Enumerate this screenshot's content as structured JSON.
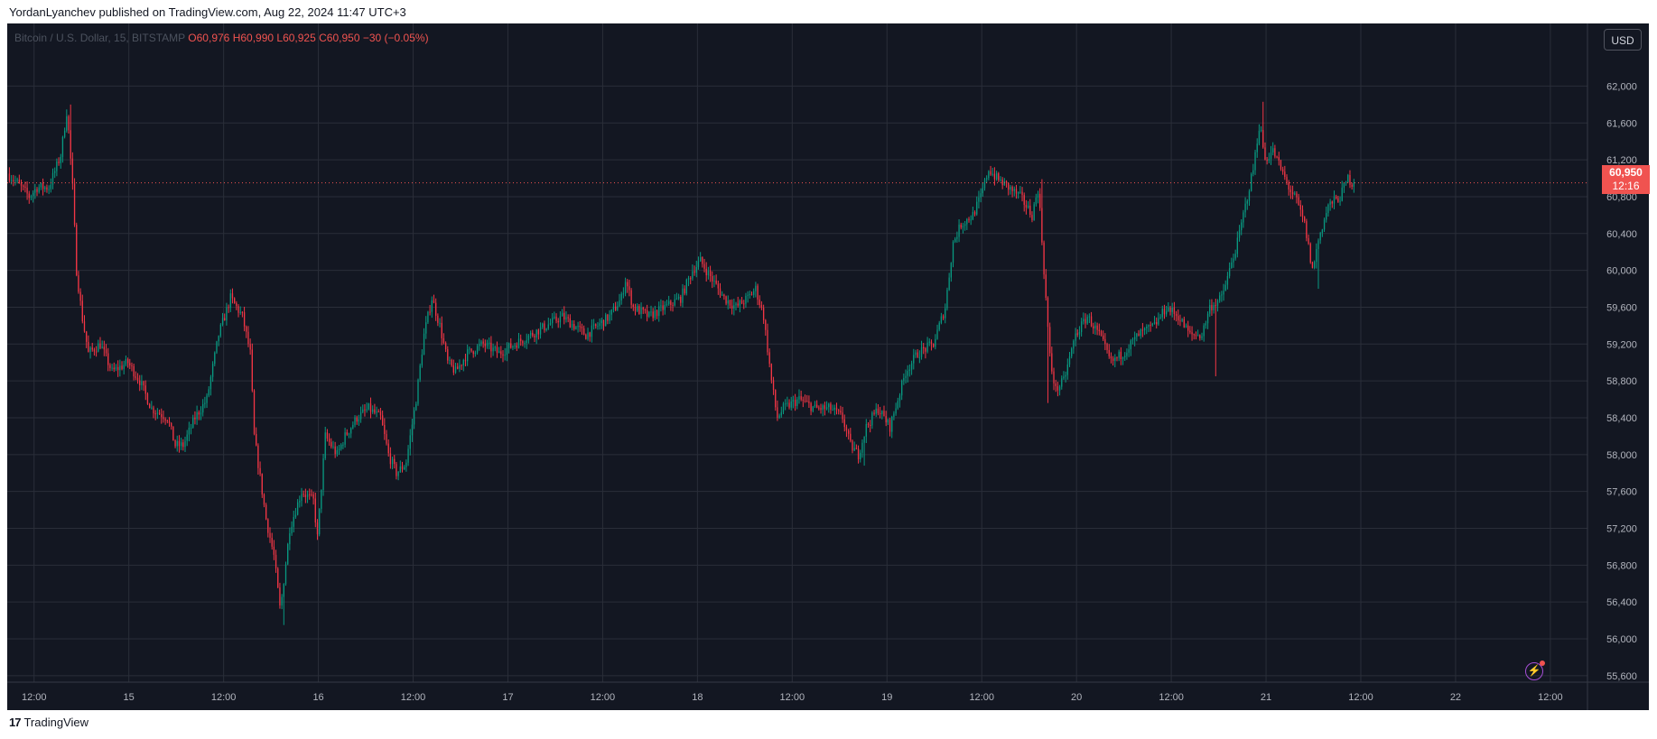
{
  "header": {
    "text": "YordanLyanchev published on TradingView.com, Aug 22, 2024 11:47 UTC+3"
  },
  "currency_button": "USD",
  "legend": {
    "symbol": "Bitcoin / U.S. Dollar, 15, BITSTAMP",
    "open": "O60,976",
    "high": "H60,990",
    "low": "L60,925",
    "close": "C60,950",
    "change": "−30 (−0.05%)"
  },
  "price_badge": {
    "price": "60,950",
    "countdown": "12:16"
  },
  "footer": {
    "logo_mark": "17",
    "brand": "TradingView"
  },
  "colors": {
    "background": "#131722",
    "grid": "#2a2e39",
    "up": "#089981",
    "down": "#f23645",
    "text": "#b2b5be",
    "badge": "#f05350"
  },
  "chart_data": {
    "type": "candlestick",
    "title": "Bitcoin / U.S. Dollar, 15, BITSTAMP",
    "y_ticks": [
      55600,
      56000,
      56400,
      56800,
      57200,
      57600,
      58000,
      58400,
      58800,
      59200,
      59600,
      60000,
      60400,
      60800,
      61200,
      61600,
      62000
    ],
    "y_tick_labels": [
      "55,600",
      "56,000",
      "56,400",
      "56,800",
      "57,200",
      "57,600",
      "58,000",
      "58,400",
      "58,800",
      "59,200",
      "59,600",
      "60,000",
      "60,400",
      "60,800",
      "61,200",
      "61,600",
      "62,000"
    ],
    "ylim": [
      55530,
      62680
    ],
    "x_ticks": [
      "12:00",
      "15",
      "12:00",
      "16",
      "12:00",
      "17",
      "12:00",
      "18",
      "12:00",
      "19",
      "12:00",
      "20",
      "12:00",
      "21",
      "12:00",
      "22",
      "12:00"
    ],
    "x_tick_hours": [
      12,
      24,
      36,
      48,
      60,
      72,
      84,
      96,
      108,
      120,
      132,
      144,
      156,
      168,
      180,
      192,
      204
    ],
    "x_range_hours": [
      8.6,
      208.7
    ],
    "bars_per_hour": 4,
    "start_hour": 8.75,
    "last_price": 60950,
    "grid": true,
    "price_path": [
      [
        8.75,
        61050
      ],
      [
        10,
        60950
      ],
      [
        11.5,
        60800
      ],
      [
        12.5,
        60900
      ],
      [
        14,
        60900
      ],
      [
        15.5,
        61250
      ],
      [
        16.3,
        61750
      ],
      [
        17,
        60900
      ],
      [
        17.5,
        60000
      ],
      [
        18.2,
        59500
      ],
      [
        19,
        59100
      ],
      [
        20.5,
        59200
      ],
      [
        22,
        58900
      ],
      [
        24,
        59000
      ],
      [
        25.5,
        58800
      ],
      [
        27,
        58500
      ],
      [
        29,
        58400
      ],
      [
        30,
        58100
      ],
      [
        31,
        58100
      ],
      [
        32.5,
        58400
      ],
      [
        34,
        58600
      ],
      [
        35.5,
        59300
      ],
      [
        37,
        59700
      ],
      [
        38.5,
        59500
      ],
      [
        39.5,
        59100
      ],
      [
        40,
        58200
      ],
      [
        41.5,
        57300
      ],
      [
        42.5,
        56900
      ],
      [
        43.3,
        56300
      ],
      [
        44.5,
        57200
      ],
      [
        46,
        57600
      ],
      [
        47.5,
        57500
      ],
      [
        48,
        57100
      ],
      [
        49,
        58200
      ],
      [
        50.5,
        58000
      ],
      [
        51.5,
        58200
      ],
      [
        53,
        58400
      ],
      [
        54.5,
        58500
      ],
      [
        56,
        58400
      ],
      [
        57,
        58000
      ],
      [
        58,
        57800
      ],
      [
        59.2,
        57900
      ],
      [
        60.5,
        58600
      ],
      [
        61.5,
        59300
      ],
      [
        62.5,
        59700
      ],
      [
        63.5,
        59400
      ],
      [
        64.5,
        59000
      ],
      [
        65.5,
        58900
      ],
      [
        67,
        59100
      ],
      [
        69,
        59200
      ],
      [
        71,
        59100
      ],
      [
        73,
        59200
      ],
      [
        75,
        59300
      ],
      [
        77,
        59400
      ],
      [
        79,
        59500
      ],
      [
        80.5,
        59400
      ],
      [
        82,
        59300
      ],
      [
        83.5,
        59400
      ],
      [
        85,
        59500
      ],
      [
        86.5,
        59700
      ],
      [
        87,
        59900
      ],
      [
        88,
        59600
      ],
      [
        90,
        59500
      ],
      [
        92,
        59600
      ],
      [
        94,
        59700
      ],
      [
        95.5,
        60000
      ],
      [
        96.5,
        60100
      ],
      [
        98,
        59900
      ],
      [
        99.5,
        59700
      ],
      [
        101,
        59600
      ],
      [
        102.5,
        59700
      ],
      [
        103.5,
        59800
      ],
      [
        104.5,
        59500
      ],
      [
        105.5,
        58800
      ],
      [
        106.2,
        58400
      ],
      [
        107,
        58500
      ],
      [
        109,
        58600
      ],
      [
        111,
        58500
      ],
      [
        113,
        58500
      ],
      [
        114.5,
        58400
      ],
      [
        115.5,
        58100
      ],
      [
        116.5,
        58000
      ],
      [
        117.5,
        58300
      ],
      [
        119,
        58500
      ],
      [
        120.5,
        58300
      ],
      [
        121.5,
        58600
      ],
      [
        122.5,
        58900
      ],
      [
        124,
        59100
      ],
      [
        126,
        59200
      ],
      [
        127.5,
        59600
      ],
      [
        128.5,
        60300
      ],
      [
        129.5,
        60500
      ],
      [
        131,
        60600
      ],
      [
        132,
        60800
      ],
      [
        133,
        61100
      ],
      [
        134,
        61000
      ],
      [
        135.5,
        60900
      ],
      [
        137,
        60800
      ],
      [
        138.5,
        60600
      ],
      [
        139.3,
        60900
      ],
      [
        140,
        60000
      ],
      [
        140.8,
        59000
      ],
      [
        141.5,
        58700
      ],
      [
        142.5,
        58800
      ],
      [
        144,
        59300
      ],
      [
        145.5,
        59500
      ],
      [
        147,
        59300
      ],
      [
        148.5,
        59000
      ],
      [
        150,
        59100
      ],
      [
        152,
        59300
      ],
      [
        154,
        59400
      ],
      [
        155.5,
        59600
      ],
      [
        157,
        59500
      ],
      [
        158.5,
        59300
      ],
      [
        160,
        59300
      ],
      [
        161,
        59600
      ],
      [
        162.5,
        59700
      ],
      [
        163.5,
        60000
      ],
      [
        164.5,
        60300
      ],
      [
        165.5,
        60700
      ],
      [
        166.5,
        61100
      ],
      [
        167.3,
        61600
      ],
      [
        168,
        61200
      ],
      [
        169,
        61300
      ],
      [
        170,
        61100
      ],
      [
        171,
        60900
      ],
      [
        172,
        60750
      ],
      [
        173,
        60500
      ],
      [
        174,
        60000
      ],
      [
        174.8,
        60350
      ],
      [
        176,
        60700
      ],
      [
        177.5,
        60800
      ],
      [
        178.5,
        61000
      ],
      [
        179,
        60950
      ]
    ],
    "events": [
      [
        16.5,
        61800
      ],
      [
        43.5,
        56150
      ],
      [
        117.1,
        57880
      ],
      [
        139.4,
        60990
      ],
      [
        167.5,
        61830
      ],
      [
        174.6,
        59800
      ],
      [
        161.5,
        58850
      ],
      [
        140.3,
        58560
      ]
    ]
  }
}
